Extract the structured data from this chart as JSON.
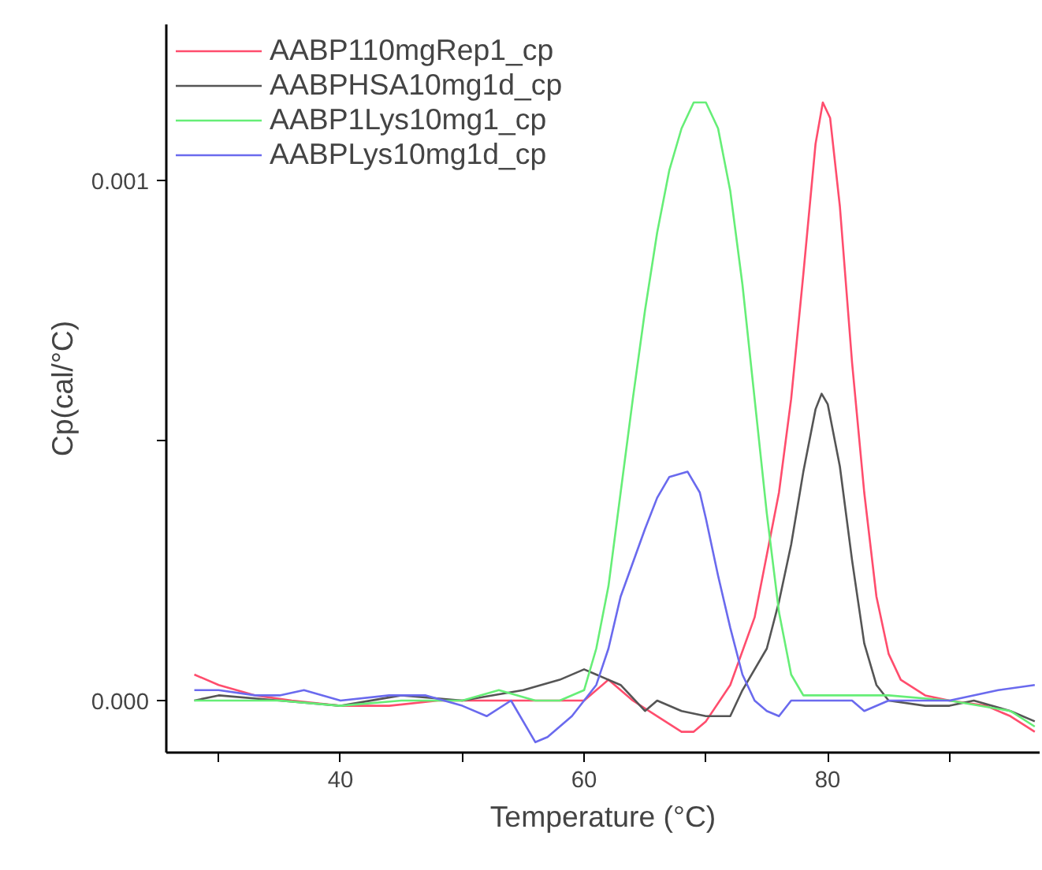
{
  "chart_data": {
    "type": "line",
    "xlabel": "Temperature (°C)",
    "ylabel": "Cp(cal/°C)",
    "xlim": [
      25.7,
      97.4
    ],
    "ylim": [
      -0.0001,
      0.0013
    ],
    "xticks": [
      {
        "value": 30,
        "label": null
      },
      40,
      {
        "value": 50,
        "label": null
      },
      60,
      {
        "value": 70,
        "label": null
      },
      80,
      {
        "value": 90,
        "label": null
      }
    ],
    "yticks": [
      {
        "value": 0,
        "label": "0.000"
      },
      {
        "value": 0.0005,
        "label": null
      },
      0.001
    ],
    "grid": false,
    "legend": "top left",
    "marker": "none",
    "line_style": "solid",
    "series": [
      {
        "name": "AABP110mgRep1_cp",
        "color": "#ff4d6d",
        "x": [
          28,
          30,
          33,
          36,
          40,
          44,
          48,
          52,
          56,
          60,
          62,
          64,
          66,
          68,
          69,
          70,
          72,
          74,
          76,
          77,
          78,
          79,
          79.6,
          80.2,
          81,
          82,
          83,
          84,
          85,
          86,
          88,
          90,
          93,
          95,
          97
        ],
        "values": [
          5e-05,
          3e-05,
          1e-05,
          0.0,
          -1e-05,
          -1e-05,
          0.0,
          0.0,
          0.0,
          0.0,
          4e-05,
          0.0,
          -3e-05,
          -6e-05,
          -6e-05,
          -4e-05,
          3e-05,
          0.00016,
          0.0004,
          0.00058,
          0.00082,
          0.00107,
          0.00115,
          0.00112,
          0.00095,
          0.00065,
          0.0004,
          0.0002,
          9e-05,
          4e-05,
          1e-05,
          0.0,
          -1e-05,
          -3e-05,
          -6e-05
        ]
      },
      {
        "name": "AABPHSA10mg1d_cp",
        "color": "#555555",
        "x": [
          28,
          30,
          35,
          40,
          45,
          50,
          55,
          58,
          60,
          61,
          63,
          65,
          66,
          68,
          70,
          72,
          73,
          75,
          76,
          77,
          78,
          79,
          79.5,
          80,
          81,
          82,
          83,
          84,
          85,
          88,
          90,
          92,
          95,
          97
        ],
        "values": [
          0.0,
          1e-05,
          0.0,
          -1e-05,
          1e-05,
          0.0,
          2e-05,
          4e-05,
          6e-05,
          5e-05,
          3e-05,
          -2e-05,
          0.0,
          -2e-05,
          -3e-05,
          -3e-05,
          2e-05,
          0.0001,
          0.00019,
          0.0003,
          0.00044,
          0.00056,
          0.00059,
          0.00057,
          0.00045,
          0.00027,
          0.00011,
          3e-05,
          0.0,
          -1e-05,
          -1e-05,
          0.0,
          -2e-05,
          -4e-05
        ]
      },
      {
        "name": "AABP1Lys10mg1_cp",
        "color": "#66ee77",
        "x": [
          28,
          35,
          40,
          45,
          50,
          53,
          56,
          58,
          60,
          61,
          62,
          63,
          64,
          65,
          66,
          67,
          68,
          69,
          70,
          71,
          72,
          73,
          74,
          75,
          76,
          77,
          78,
          80,
          85,
          90,
          95,
          97
        ],
        "values": [
          0.0,
          0.0,
          -1e-05,
          0.0,
          0.0,
          2e-05,
          0.0,
          0.0,
          2e-05,
          0.0001,
          0.00022,
          0.0004,
          0.00058,
          0.00075,
          0.0009,
          0.00102,
          0.0011,
          0.00115,
          0.00115,
          0.0011,
          0.00098,
          0.0008,
          0.00058,
          0.00036,
          0.00017,
          5e-05,
          1e-05,
          1e-05,
          1e-05,
          0.0,
          -2e-05,
          -5e-05
        ]
      },
      {
        "name": "AABPLys10mg1d_cp",
        "color": "#6a6aee",
        "x": [
          28,
          30,
          33,
          35,
          37,
          40,
          44,
          47,
          50,
          52,
          54,
          56,
          57,
          59,
          60,
          61,
          62,
          63,
          65,
          66,
          67,
          68.5,
          69.5,
          70,
          71,
          72,
          73,
          74,
          75,
          76,
          77,
          80,
          82,
          83,
          85,
          90,
          94,
          97
        ],
        "values": [
          2e-05,
          2e-05,
          1e-05,
          1e-05,
          2e-05,
          0.0,
          1e-05,
          1e-05,
          -1e-05,
          -3e-05,
          0.0,
          -8e-05,
          -7e-05,
          -3e-05,
          0.0,
          3e-05,
          0.0001,
          0.0002,
          0.00033,
          0.00039,
          0.00043,
          0.00044,
          0.0004,
          0.00035,
          0.00024,
          0.00014,
          5e-05,
          0.0,
          -2e-05,
          -3e-05,
          0.0,
          0.0,
          0.0,
          -2e-05,
          0.0,
          0.0,
          2e-05,
          3e-05
        ]
      }
    ]
  }
}
